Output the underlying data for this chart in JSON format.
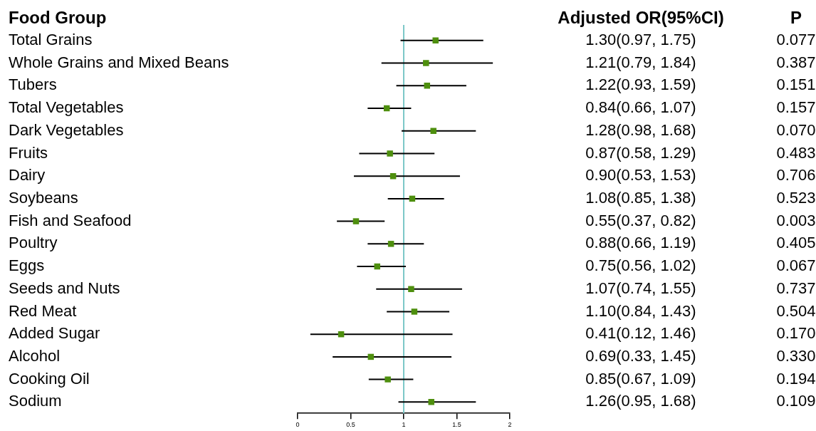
{
  "chart_data": {
    "type": "scatter",
    "ylabel": "Food Group",
    "categories": [
      "Total Grains",
      "Whole Grains and Mixed Beans",
      "Tubers",
      "Total Vegetables",
      "Dark Vegetables",
      "Fruits",
      "Dairy",
      "Soybeans",
      "Fish and Seafood",
      "Poultry",
      "Eggs",
      "Seeds and Nuts",
      "Red Meat",
      "Added Sugar",
      "Alcohol",
      "Cooking Oil",
      "Sodium"
    ],
    "values": [
      1.3,
      1.21,
      1.22,
      0.84,
      1.28,
      0.87,
      0.9,
      1.08,
      0.55,
      0.88,
      0.75,
      1.07,
      1.1,
      0.41,
      0.69,
      0.85,
      1.26
    ],
    "errors": [
      [
        0.97,
        1.75
      ],
      [
        0.79,
        1.84
      ],
      [
        0.93,
        1.59
      ],
      [
        0.66,
        1.07
      ],
      [
        0.98,
        1.68
      ],
      [
        0.58,
        1.29
      ],
      [
        0.53,
        1.53
      ],
      [
        0.85,
        1.38
      ],
      [
        0.37,
        0.82
      ],
      [
        0.66,
        1.19
      ],
      [
        0.56,
        1.02
      ],
      [
        0.74,
        1.55
      ],
      [
        0.84,
        1.43
      ],
      [
        0.12,
        1.46
      ],
      [
        0.33,
        1.45
      ],
      [
        0.67,
        1.09
      ],
      [
        0.95,
        1.68
      ]
    ],
    "value_labels": [
      "1.30(0.97, 1.75)",
      "1.21(0.79, 1.84)",
      "1.22(0.93, 1.59)",
      "0.84(0.66, 1.07)",
      "1.28(0.98, 1.68)",
      "0.87(0.58, 1.29)",
      "0.90(0.53, 1.53)",
      "1.08(0.85, 1.38)",
      "0.55(0.37, 0.82)",
      "0.88(0.66, 1.19)",
      "0.75(0.56, 1.02)",
      "1.07(0.74, 1.55)",
      "1.10(0.84, 1.43)",
      "0.41(0.12, 1.46)",
      "0.69(0.33, 1.45)",
      "0.85(0.67, 1.09)",
      "1.26(0.95, 1.68)"
    ],
    "color": "#4e8f0e",
    "marker": "square",
    "orientation": "horizontal",
    "xlim": [
      0,
      2
    ],
    "xticks": [
      0,
      0.5,
      1,
      1.5,
      2
    ],
    "ref_lines": [
      {
        "axis": "x",
        "value": 1,
        "color": "#7cc8c8"
      }
    ],
    "annotations": [
      "Adjusted OR(95%CI)",
      "P",
      "0.077",
      "0.387",
      "0.151",
      "0.157",
      "0.070",
      "0.483",
      "0.706",
      "0.523",
      "0.003",
      "0.405",
      "0.067",
      "0.737",
      "0.504",
      "0.170",
      "0.330",
      "0.194",
      "0.109"
    ]
  }
}
